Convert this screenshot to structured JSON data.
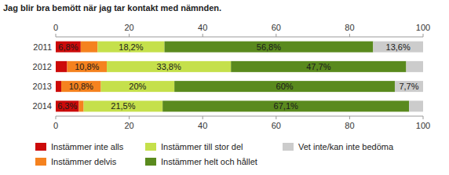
{
  "chart_data": {
    "type": "bar",
    "orientation": "horizontal",
    "stacked": true,
    "data_labels": true,
    "grid": false,
    "legend": "bottom",
    "title": "Jag blir bra bemött när jag tar kontakt med nämnden.",
    "categories": [
      "2011",
      "2012",
      "2013",
      "2014"
    ],
    "xlim": [
      0,
      100
    ],
    "xticks": [
      0,
      20,
      40,
      60,
      80,
      100
    ],
    "series": [
      {
        "name": "Instämmer inte alls",
        "color": "#cc0a0a",
        "values": [
          6.8,
          3.1,
          1.5,
          6.3
        ],
        "value_labels": [
          "6,8%",
          null,
          null,
          "6,3%"
        ]
      },
      {
        "name": "Instämmer delvis",
        "color": "#f5821f",
        "values": [
          4.6,
          10.8,
          10.8,
          1.3
        ],
        "value_labels": [
          null,
          "10,8%",
          "10,8%",
          null
        ]
      },
      {
        "name": "Instämmer till stor del",
        "color": "#c5e04b",
        "values": [
          18.2,
          33.8,
          20,
          21.5
        ],
        "value_labels": [
          "18,2%",
          "33,8%",
          "20%",
          "21,5%"
        ]
      },
      {
        "name": "Instämmer helt och hållet",
        "color": "#5a8a1e",
        "values": [
          56.8,
          47.7,
          60,
          67.1
        ],
        "value_labels": [
          "56,8%",
          "47,7%",
          "60%",
          "67,1%"
        ]
      },
      {
        "name": "Vet inte/kan inte bedöma",
        "color": "#cccccc",
        "values": [
          13.6,
          4.6,
          7.7,
          3.8
        ],
        "value_labels": [
          "13,6%",
          null,
          "7,7%",
          null
        ]
      }
    ]
  }
}
